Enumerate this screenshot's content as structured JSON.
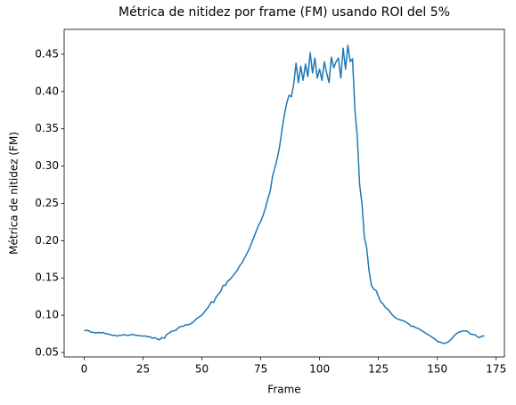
{
  "chart_data": {
    "type": "line",
    "title": "Métrica de nitidez por frame (FM) usando ROI del 5%",
    "xlabel": "Frame",
    "ylabel": "Métrica de nitidez (FM)",
    "x": [
      0,
      1,
      2,
      3,
      4,
      5,
      6,
      7,
      8,
      9,
      10,
      11,
      12,
      13,
      14,
      15,
      16,
      17,
      18,
      19,
      20,
      21,
      22,
      23,
      24,
      25,
      26,
      27,
      28,
      29,
      30,
      31,
      32,
      33,
      34,
      35,
      36,
      37,
      38,
      39,
      40,
      41,
      42,
      43,
      44,
      45,
      46,
      47,
      48,
      49,
      50,
      51,
      52,
      53,
      54,
      55,
      56,
      57,
      58,
      59,
      60,
      61,
      62,
      63,
      64,
      65,
      66,
      67,
      68,
      69,
      70,
      71,
      72,
      73,
      74,
      75,
      76,
      77,
      78,
      79,
      80,
      81,
      82,
      83,
      84,
      85,
      86,
      87,
      88,
      89,
      90,
      91,
      92,
      93,
      94,
      95,
      96,
      97,
      98,
      99,
      100,
      101,
      102,
      103,
      104,
      105,
      106,
      107,
      108,
      109,
      110,
      111,
      112,
      113,
      114,
      115,
      116,
      117,
      118,
      119,
      120,
      121,
      122,
      123,
      124,
      125,
      126,
      127,
      128,
      129,
      130,
      131,
      132,
      133,
      134,
      135,
      136,
      137,
      138,
      139,
      140,
      141,
      142,
      143,
      144,
      145,
      146,
      147,
      148,
      149,
      150,
      151,
      152,
      153,
      154,
      155,
      156,
      157,
      158,
      159,
      160,
      161,
      162,
      163,
      164,
      165,
      166,
      167,
      168,
      169,
      170
    ],
    "series": [
      {
        "color": "#1f77b4",
        "values": [
          0.079,
          0.08,
          0.079,
          0.077,
          0.077,
          0.076,
          0.077,
          0.076,
          0.077,
          0.075,
          0.075,
          0.074,
          0.073,
          0.073,
          0.072,
          0.073,
          0.073,
          0.074,
          0.073,
          0.073,
          0.074,
          0.074,
          0.073,
          0.073,
          0.072,
          0.072,
          0.072,
          0.071,
          0.071,
          0.069,
          0.07,
          0.068,
          0.067,
          0.07,
          0.069,
          0.074,
          0.076,
          0.078,
          0.079,
          0.08,
          0.083,
          0.085,
          0.085,
          0.087,
          0.087,
          0.088,
          0.09,
          0.093,
          0.096,
          0.098,
          0.1,
          0.104,
          0.108,
          0.112,
          0.118,
          0.117,
          0.124,
          0.128,
          0.132,
          0.14,
          0.14,
          0.146,
          0.148,
          0.152,
          0.156,
          0.16,
          0.166,
          0.17,
          0.176,
          0.182,
          0.188,
          0.196,
          0.204,
          0.212,
          0.22,
          0.226,
          0.234,
          0.244,
          0.256,
          0.266,
          0.286,
          0.298,
          0.31,
          0.326,
          0.348,
          0.368,
          0.384,
          0.395,
          0.393,
          0.41,
          0.438,
          0.412,
          0.434,
          0.415,
          0.437,
          0.42,
          0.452,
          0.425,
          0.445,
          0.418,
          0.43,
          0.415,
          0.44,
          0.425,
          0.412,
          0.446,
          0.432,
          0.44,
          0.445,
          0.418,
          0.458,
          0.43,
          0.462,
          0.44,
          0.444,
          0.375,
          0.34,
          0.275,
          0.25,
          0.205,
          0.19,
          0.16,
          0.14,
          0.135,
          0.133,
          0.125,
          0.118,
          0.115,
          0.11,
          0.108,
          0.104,
          0.1,
          0.097,
          0.095,
          0.094,
          0.093,
          0.092,
          0.09,
          0.088,
          0.085,
          0.085,
          0.083,
          0.082,
          0.08,
          0.078,
          0.076,
          0.074,
          0.072,
          0.07,
          0.068,
          0.065,
          0.064,
          0.063,
          0.062,
          0.063,
          0.065,
          0.068,
          0.072,
          0.075,
          0.077,
          0.078,
          0.079,
          0.079,
          0.078,
          0.075,
          0.074,
          0.074,
          0.071,
          0.07,
          0.072,
          0.072
        ]
      }
    ],
    "xlim": [
      -8.5,
      178.5
    ],
    "ylim": [
      0.044,
      0.4834
    ],
    "xticks": [
      0,
      25,
      50,
      75,
      100,
      125,
      150,
      175
    ],
    "yticks": [
      0.05,
      {
        "value": 0.1,
        "label": "0.10"
      },
      0.15,
      {
        "value": 0.2,
        "label": "0.20"
      },
      0.25,
      {
        "value": 0.3,
        "label": "0.30"
      },
      0.35,
      {
        "value": 0.4,
        "label": "0.40"
      },
      0.45
    ]
  }
}
